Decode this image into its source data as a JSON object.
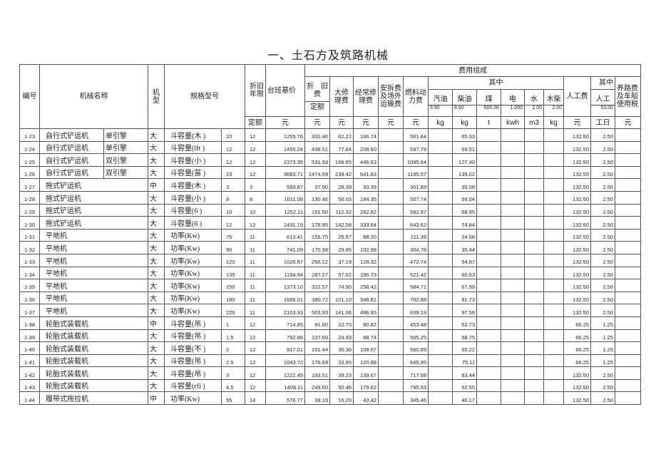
{
  "title": "一、土石方及筑路机械",
  "header": {
    "code": "编号",
    "name": "机械名称",
    "type": "机型",
    "spec": "规格型号",
    "life": "折旧年限",
    "base": "台班基价",
    "group": "费用组成",
    "depr": "折　旧费",
    "depr_sub": "定额",
    "overhaul": "大修理费",
    "repair": "经常修理费",
    "install": "安拆费及场外运输费",
    "fuel": "燃料动力费",
    "of_which": "其中",
    "gasoline": "汽油",
    "gasoline_price": "9.90",
    "diesel": "柴油",
    "diesel_price": "8.60",
    "coal": "煤",
    "coal_price": "600.00",
    "elec": "电",
    "elec_price": "1.000",
    "water": "水",
    "water_price": "2.00",
    "wood": "木柴",
    "wood_price": "2.00",
    "labor": "人工费",
    "of_which2": "其中",
    "labor_days": "人工",
    "labor_price": "53.00",
    "road": "养路费及车船使用税",
    "units": [
      "定额",
      "元",
      "元",
      "元",
      "元",
      "元",
      "元",
      "kg",
      "kg",
      "t",
      "kwh",
      "m3",
      "kg",
      "元",
      "工日",
      "元"
    ]
  },
  "rows": [
    [
      "1-23",
      "自行式铲运机",
      "单引擎",
      "大",
      "斗容量(木 )",
      "10",
      "12",
      "1255.76",
      "332.46",
      "62.22",
      "166.74",
      "",
      "561.84",
      "",
      "65.33",
      "",
      "",
      "",
      "",
      "132.50",
      "2.50",
      ""
    ],
    [
      "1-24",
      "自行式铲运机",
      "单引擎",
      "大",
      "斗容量(lft )",
      "12",
      "12",
      "1455.24",
      "438.51",
      "77.84",
      "208.60",
      "",
      "597.79",
      "",
      "69.51",
      "",
      "",
      "",
      "",
      "132.50",
      "2.50",
      ""
    ],
    [
      "1-25",
      "自行式铲运机",
      "双引擎",
      "大",
      "斗容量(小 )",
      "12",
      "12",
      "2373.35",
      "531.93",
      "166.65",
      "446.63",
      "",
      "1095.64",
      "",
      "127.40",
      "",
      "",
      "",
      "",
      "132.50",
      "2.50",
      ""
    ],
    [
      "1-26",
      "自行式铲运机",
      "双引擎",
      "大",
      "斗容量(苗 )",
      "23",
      "12",
      "3683.71",
      "1474.59",
      "239.42",
      "641.63",
      "",
      "1195.57",
      "",
      "139.02",
      "",
      "",
      "",
      "",
      "132.50",
      "2.50",
      ""
    ],
    [
      "1-27",
      "拖式铲运机",
      "",
      "中",
      "斗容量(木 )",
      "3",
      "3",
      "593.87",
      "37.90",
      "28.39",
      "93.39",
      "",
      "301.69",
      "",
      "35.08",
      "",
      "",
      "",
      "",
      "132.50",
      "2.50",
      ""
    ],
    [
      "1-28",
      "拖式铲运机",
      "",
      "大",
      "斗容量(小 )",
      "8",
      "8",
      "1011.08",
      "130.46",
      "56.03",
      "184.35",
      "",
      "507.74",
      "",
      "59.04",
      "",
      "",
      "",
      "",
      "132.50",
      "2.50",
      ""
    ],
    [
      "1-29",
      "拖式铲运机",
      "",
      "大",
      "斗容量(6 )",
      "10",
      "10",
      "1252.11",
      "151.50",
      "112.32",
      "262.82",
      "",
      "592.97",
      "",
      "68.95",
      "",
      "",
      "",
      "",
      "132.50",
      "2.50",
      ""
    ],
    [
      "1-30",
      "拖式铲运机",
      "",
      "大",
      "斗容量(6 )",
      "12",
      "12",
      "1431.19",
      "178.85",
      "142.58",
      "333.64",
      "",
      "643.62",
      "",
      "74.84",
      "",
      "",
      "",
      "",
      "132.50",
      "2.50",
      ""
    ],
    [
      "1-31",
      "平地机",
      "",
      "大",
      "功率(Kw)",
      "75",
      "11",
      "613.41",
      "155.75",
      "25.57",
      "88.20",
      "",
      "211.39",
      "",
      "24.58",
      "",
      "",
      "",
      "",
      "132.50",
      "2.50",
      ""
    ],
    [
      "1-32",
      "平地机",
      "",
      "大",
      "功率(Kw)",
      "90",
      "11",
      "741.09",
      "170.98",
      "29.85",
      "102.98",
      "",
      "304.78",
      "",
      "35.44",
      "",
      "",
      "",
      "",
      "132.50",
      "2.50",
      ""
    ],
    [
      "1-33",
      "平地机",
      "",
      "大",
      "功率(Kw)",
      "120",
      "11",
      "1026.87",
      "256.12",
      "37.19",
      "128.32",
      "",
      "472.74",
      "",
      "54.97",
      "",
      "",
      "",
      "",
      "132.50",
      "2.50",
      ""
    ],
    [
      "1-34",
      "平地机",
      "",
      "大",
      "功率(Kw)",
      "135",
      "11",
      "1194.94",
      "287.27",
      "57.02",
      "196.73",
      "",
      "521.42",
      "",
      "60.63",
      "",
      "",
      "",
      "",
      "132.50",
      "2.50",
      ""
    ],
    [
      "1-35",
      "平地机",
      "",
      "大",
      "功率(Kw)",
      "150",
      "11",
      "1373.10",
      "322.57",
      "74.90",
      "258.42",
      "",
      "584.71",
      "",
      "67.99",
      "",
      "",
      "",
      "",
      "132.50",
      "2.50",
      ""
    ],
    [
      "1-36",
      "平地机",
      "",
      "大",
      "功率(Kw)",
      "180",
      "11",
      "1666.01",
      "380.72",
      "101.10",
      "348.81",
      "",
      "702.88",
      "",
      "81.73",
      "",
      "",
      "",
      "",
      "132.50",
      "2.50",
      ""
    ],
    [
      "1-37",
      "平地机",
      "",
      "大",
      "功率(Kw)",
      "220",
      "11",
      "2103.33",
      "503.93",
      "141.06",
      "486.65",
      "",
      "839.19",
      "",
      "97.58",
      "",
      "",
      "",
      "",
      "132.50",
      "2.50",
      ""
    ],
    [
      "1-38",
      "轮胎式装载机",
      "",
      "中",
      "斗容量(吊 )",
      "1",
      "12",
      "714.85",
      "91.60",
      "22.70",
      "80.82",
      "",
      "453.48",
      "",
      "52.73",
      "",
      "",
      "",
      "",
      "66.25",
      "1.25",
      ""
    ],
    [
      "1-39",
      "轮胎式装载机",
      "",
      "大",
      "斗容量(吊 )",
      "1.5",
      "12",
      "792.86",
      "107.69",
      "24.93",
      "88.74",
      "",
      "505.25",
      "",
      "58.75",
      "",
      "",
      "",
      "",
      "66.25",
      "1.25",
      ""
    ],
    [
      "1-40",
      "轮胎式装载机",
      "",
      "大",
      "斗容量(不 )",
      "2",
      "12",
      "917.01",
      "151.44",
      "30.36",
      "108.07",
      "",
      "560.89",
      "",
      "65.22",
      "",
      "",
      "",
      "",
      "66.25",
      "1.25",
      ""
    ],
    [
      "1-41",
      "轮胎式装载机",
      "",
      "大",
      "斗容量(吊 )",
      "2.5",
      "12",
      "1043.72",
      "176.69",
      "33.95",
      "120.88",
      "",
      "645.95",
      "",
      "75.11",
      "",
      "",
      "",
      "",
      "66.25",
      "1.25",
      ""
    ],
    [
      "1-42",
      "轮胎式装载机",
      "",
      "大",
      "斗容量(吊 )",
      "3",
      "12",
      "1222.49",
      "193.51",
      "39.23",
      "139.67",
      "",
      "717.58",
      "",
      "83.44",
      "",
      "",
      "",
      "",
      "132.50",
      "2.50",
      ""
    ],
    [
      "1-43",
      "轮胎式装载机",
      "",
      "大",
      "斗容量(rfi )",
      "4.5",
      "12",
      "1408.11",
      "249.60",
      "50.46",
      "179.62",
      "",
      "795.93",
      "",
      "92.55",
      "",
      "",
      "",
      "",
      "132.50",
      "2.50",
      ""
    ],
    [
      "1-44",
      "履带式拖拉机",
      "",
      "中",
      "功率(Kw)",
      "55",
      "14",
      "576.77",
      "39.19",
      "16.20",
      "43.42",
      "",
      "345.46",
      "",
      "40.17",
      "",
      "",
      "",
      "",
      "132.50",
      "2.50",
      ""
    ]
  ]
}
